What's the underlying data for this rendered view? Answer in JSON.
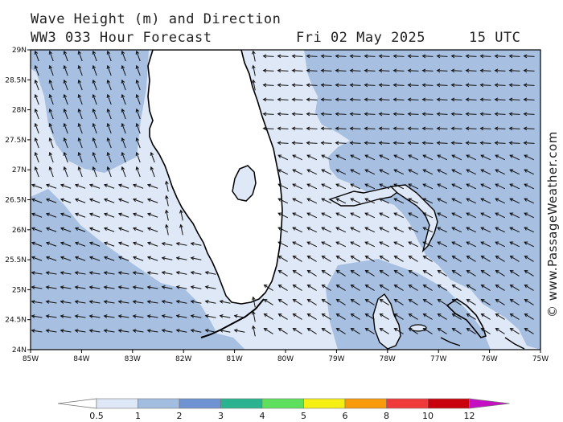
{
  "header": {
    "title_line1": "Wave Height (m) and Direction",
    "title_line2": "WW3 033 Hour Forecast",
    "date": "Fri 02 May 2025",
    "time": "15 UTC"
  },
  "credit": "© www.PassageWeather.com",
  "map": {
    "lat_ticks": [
      "29N",
      "28.5N",
      "28N",
      "27.5N",
      "27N",
      "26.5N",
      "26N",
      "25.5N",
      "25N",
      "24.5N",
      "24N"
    ],
    "lon_ticks": [
      "85W",
      "84W",
      "83W",
      "82W",
      "81W",
      "80W",
      "79W",
      "78W",
      "77W",
      "76W",
      "75W"
    ]
  },
  "legend": {
    "levels": [
      "0.5",
      "1",
      "2",
      "3",
      "4",
      "5",
      "6",
      "8",
      "10",
      "12"
    ],
    "colors": [
      "#ffffff",
      "#dde7f6",
      "#a3bde0",
      "#6f93d2",
      "#29b38e",
      "#5fe05c",
      "#f5ef12",
      "#f99a0b",
      "#f0393b",
      "#c9000d",
      "#c40fc3"
    ]
  },
  "colors": {
    "calm": "#dfe8f6",
    "moderate": "#a7bfe1",
    "land": "#ffffff"
  }
}
